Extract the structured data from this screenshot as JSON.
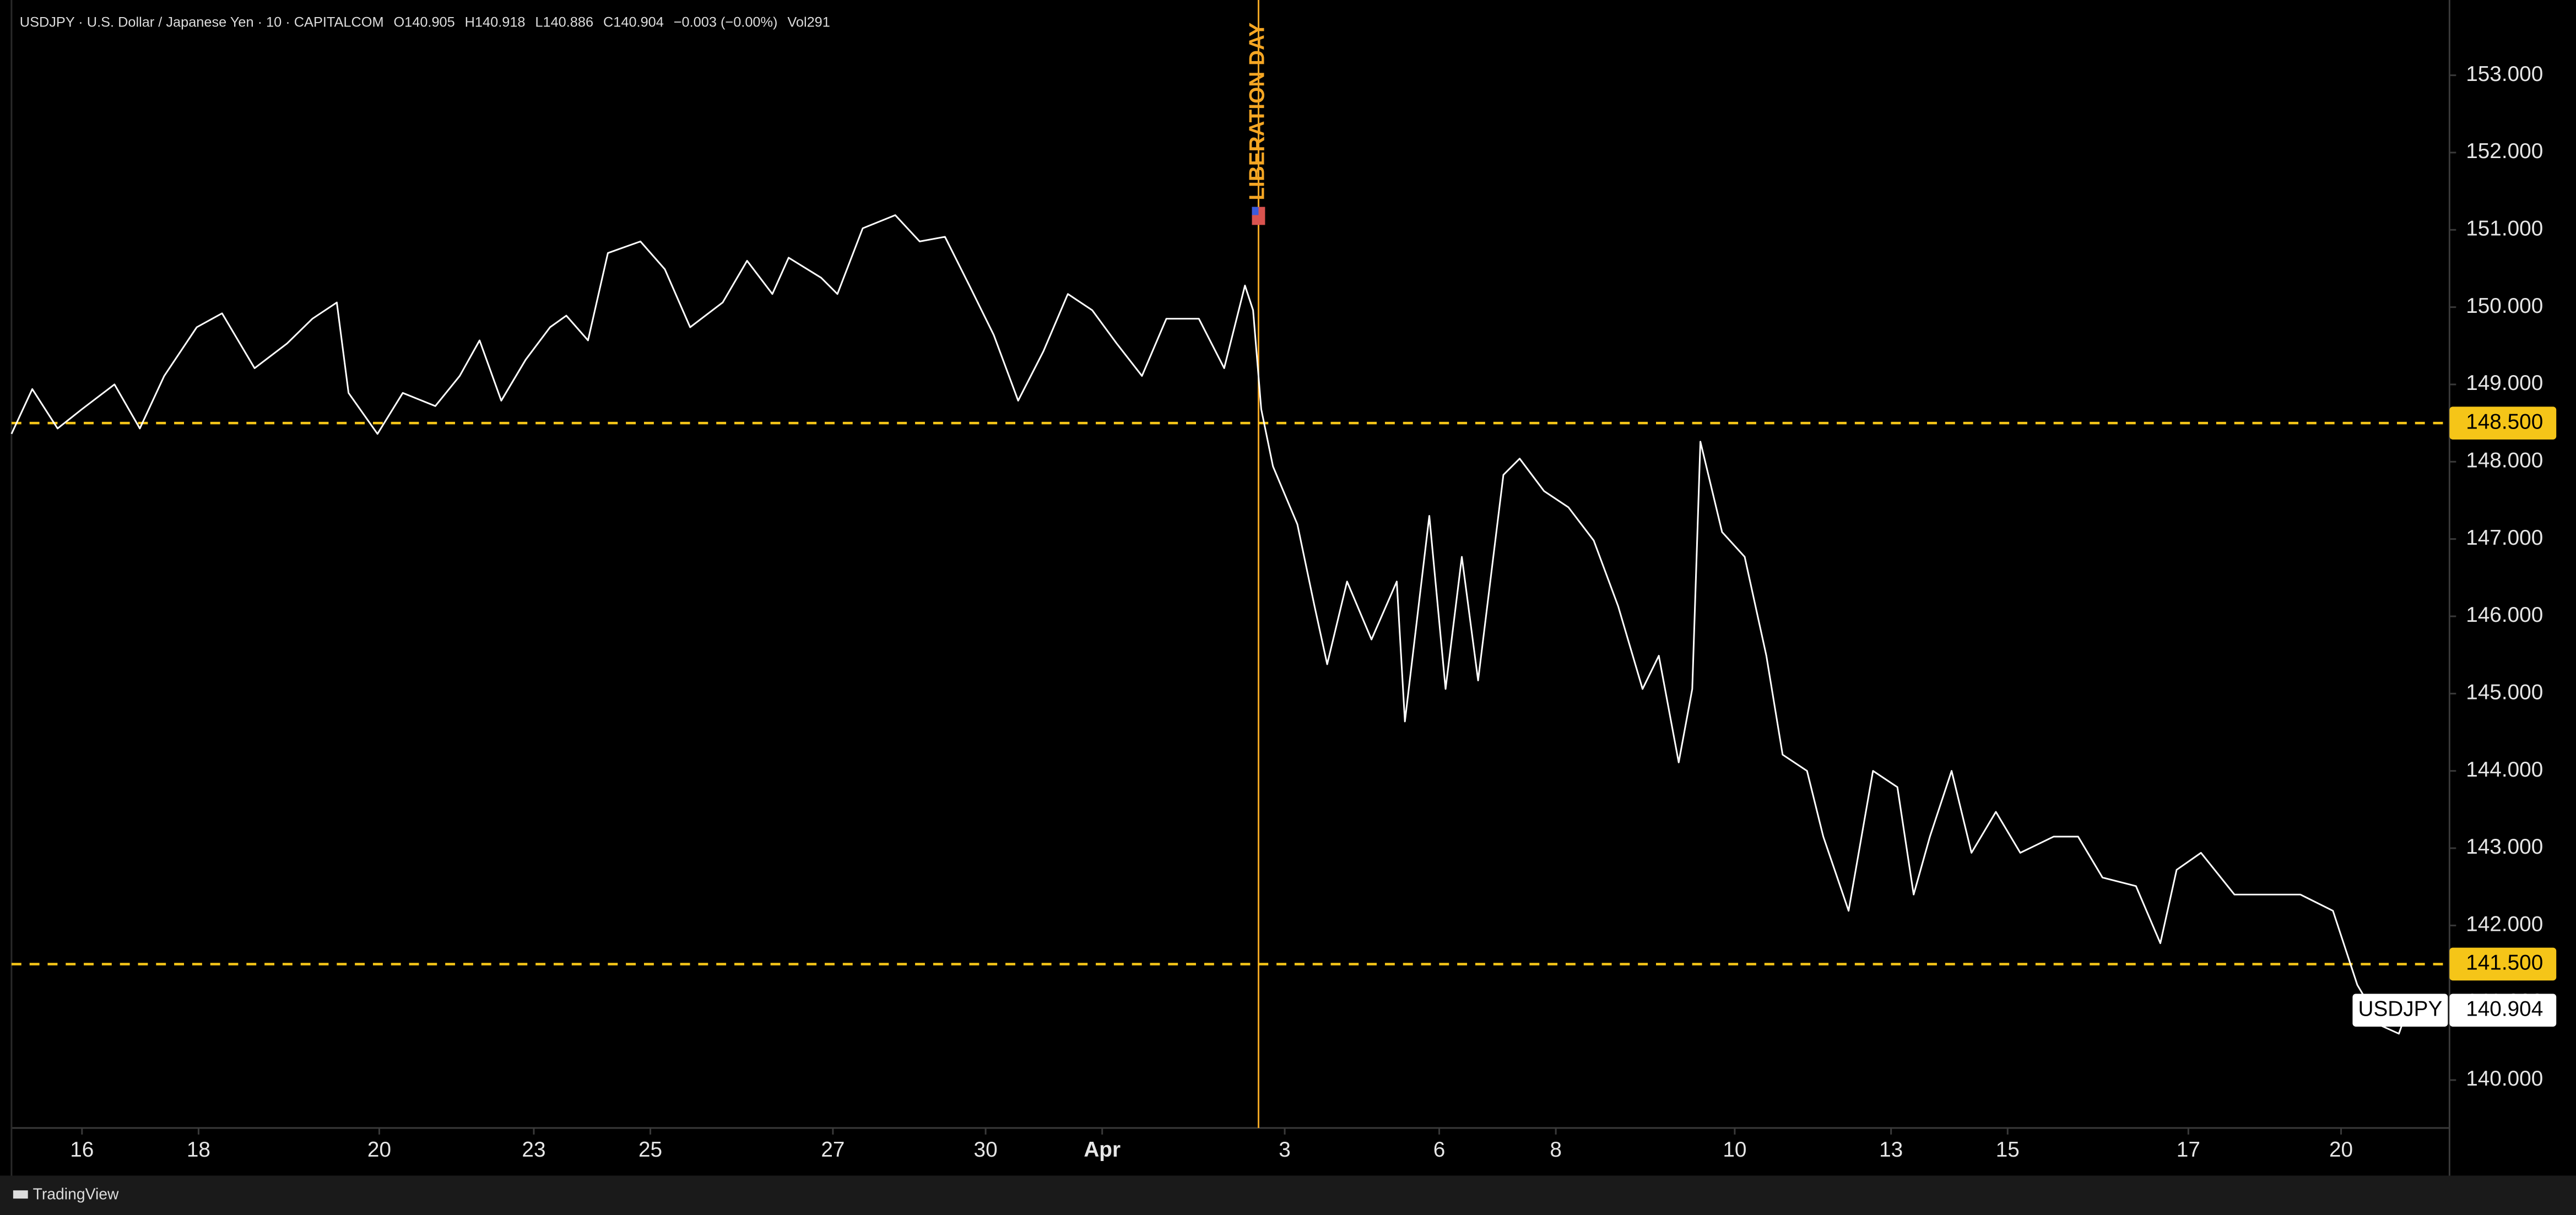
{
  "chart_data": {
    "type": "line",
    "title": "USDJPY · U.S. Dollar / Japanese Yen · 10 · CAPITALCOM",
    "ohlc": [
      "O140.905",
      "H140.918",
      "L140.886",
      "C140.904",
      "−0.003 (−0.00%)",
      "Vol291"
    ],
    "brand": "TradingView",
    "series": [
      {
        "name": "USDJPY",
        "color": "#ffffff",
        "x": [
          -0.78,
          -0.55,
          -0.27,
          0,
          0.36,
          0.64,
          0.91,
          1.27,
          1.55,
          1.91,
          2.27,
          2.55,
          2.82,
          2.95,
          3.27,
          3.55,
          3.91,
          4.18,
          4.4,
          4.64,
          4.91,
          5.18,
          5.36,
          5.6,
          5.82,
          6.18,
          6.45,
          6.73,
          7.09,
          7.36,
          7.64,
          7.82,
          8.18,
          8.36,
          8.64,
          9,
          9.27,
          9.55,
          9.82,
          10.09,
          10.36,
          10.64,
          10.91,
          11.18,
          11.45,
          11.73,
          12,
          12.36,
          12.64,
          12.87,
          12.96,
          13.05,
          13.18,
          13.45,
          13.64,
          13.78,
          14,
          14.27,
          14.55,
          14.64,
          14.91,
          15.09,
          15.27,
          15.45,
          15.73,
          15.91,
          16.18,
          16.45,
          16.73,
          17,
          17.27,
          17.45,
          17.67,
          17.82,
          17.91,
          18.15,
          18.4,
          18.64,
          18.82,
          19.09,
          19.27,
          19.55,
          19.82,
          20.09,
          20.27,
          20.45,
          20.69,
          20.91,
          21.18,
          21.45,
          21.82,
          22.09,
          22.36,
          22.73,
          23,
          23.18,
          23.45,
          23.82,
          24.18,
          24.55,
          24.91,
          25.18,
          25.45,
          25.64,
          25.73
        ],
        "values": [
          148.36,
          148.94,
          148.43,
          148.68,
          149.0,
          148.43,
          149.11,
          149.74,
          149.92,
          149.21,
          149.53,
          149.85,
          150.06,
          148.89,
          148.36,
          148.89,
          148.72,
          149.11,
          149.57,
          148.79,
          149.32,
          149.74,
          149.89,
          149.57,
          150.7,
          150.85,
          150.49,
          149.74,
          150.06,
          150.6,
          150.17,
          150.64,
          150.38,
          150.17,
          151.02,
          151.19,
          150.85,
          150.91,
          150.28,
          149.64,
          148.79,
          149.43,
          150.17,
          149.96,
          149.53,
          149.11,
          149.85,
          149.85,
          149.21,
          150.28,
          149.96,
          148.68,
          147.94,
          147.19,
          146.13,
          145.38,
          146.45,
          145.7,
          146.45,
          144.64,
          147.3,
          145.06,
          146.77,
          145.17,
          147.83,
          148.04,
          147.62,
          147.41,
          146.98,
          146.13,
          145.06,
          145.49,
          144.11,
          145.06,
          148.26,
          147.09,
          146.77,
          145.49,
          144.21,
          144.0,
          143.15,
          142.19,
          144.0,
          143.79,
          142.4,
          143.15,
          144.0,
          142.94,
          143.47,
          142.94,
          143.15,
          143.15,
          142.62,
          142.51,
          141.77,
          142.72,
          142.94,
          142.4,
          142.4,
          142.4,
          142.19,
          141.23,
          140.7,
          140.6,
          140.9
        ]
      }
    ],
    "last_price": {
      "value": 140.904,
      "label": "140.904"
    },
    "levels": [
      {
        "value": 148.5,
        "label": "148.500"
      },
      {
        "value": 141.5,
        "label": "141.500"
      }
    ],
    "level_color": "#f5c518",
    "events": [
      {
        "x": 13.02,
        "label": "LIBERATION DAY",
        "color": "#f5a623"
      }
    ],
    "xlim": [
      -0.78,
      26.2
    ],
    "ylim": [
      139.38,
      153.91
    ],
    "xticks": [
      {
        "value": 0,
        "label": "16"
      },
      {
        "value": 1.29,
        "label": "18"
      },
      {
        "value": 3.29,
        "label": "20"
      },
      {
        "value": 5,
        "label": "23"
      },
      {
        "value": 6.29,
        "label": "25"
      },
      {
        "value": 8.31,
        "label": "27"
      },
      {
        "value": 10,
        "label": "30"
      },
      {
        "value": 11.29,
        "label": "Apr"
      },
      {
        "value": 13.31,
        "label": "3"
      },
      {
        "value": 15.02,
        "label": "6"
      },
      {
        "value": 16.31,
        "label": "8"
      },
      {
        "value": 18.29,
        "label": "10"
      },
      {
        "value": 20.02,
        "label": "13"
      },
      {
        "value": 21.31,
        "label": "15"
      },
      {
        "value": 23.31,
        "label": "17"
      },
      {
        "value": 25,
        "label": "20"
      }
    ],
    "yticks": [
      {
        "value": 140,
        "label": "140.000"
      },
      {
        "value": 141,
        "label": "141.000"
      },
      {
        "value": 142,
        "label": "142.000"
      },
      {
        "value": 143,
        "label": "143.000"
      },
      {
        "value": 144,
        "label": "144.000"
      },
      {
        "value": 145,
        "label": "145.000"
      },
      {
        "value": 146,
        "label": "146.000"
      },
      {
        "value": 147,
        "label": "147.000"
      },
      {
        "value": 148,
        "label": "148.000"
      },
      {
        "value": 149,
        "label": "149.000"
      },
      {
        "value": 150,
        "label": "150.000"
      },
      {
        "value": 151,
        "label": "151.000"
      },
      {
        "value": 152,
        "label": "152.000"
      },
      {
        "value": 153,
        "label": "153.000"
      }
    ]
  }
}
